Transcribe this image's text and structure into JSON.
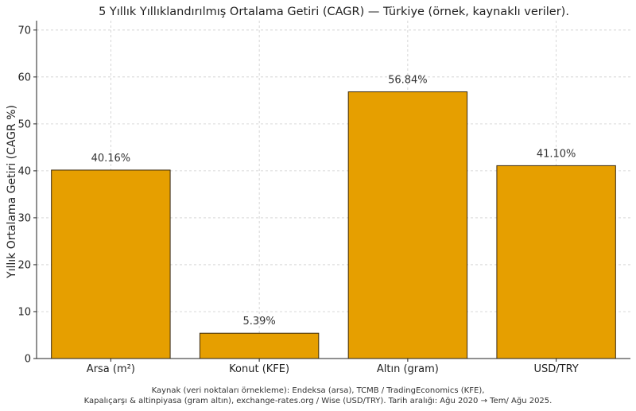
{
  "chart_data": {
    "type": "bar",
    "title": "5 Yıllık Yıllıklandırılmış Ortalama Getiri (CAGR) — Türkiye (örnek, kaynaklı veriler).",
    "ylabel": "Yıllık Ortalama Getiri (CAGR %)",
    "xlabel": "",
    "categories": [
      "Arsa (m²)",
      "Konut (KFE)",
      "Altın (gram)",
      "USD/TRY"
    ],
    "values": [
      40.16,
      5.39,
      56.84,
      41.1
    ],
    "value_labels": [
      "40.16%",
      "5.39%",
      "56.84%",
      "41.10%"
    ],
    "ylim": [
      0,
      72
    ],
    "yticks": [
      0,
      10,
      20,
      30,
      40,
      50,
      60,
      70
    ],
    "grid": true,
    "bar_color": "#E69F00",
    "bar_edge_color": "#3a2a10"
  },
  "source": {
    "line1": "Kaynak (veri noktaları örnekleme): Endeksa (arsa), TCMB / TradingEconomics (KFE),",
    "line2": "Kapalıçarşı & altinpiyasa (gram altın), exchange-rates.org / Wise (USD/TRY). Tarih aralığı: Ağu 2020 → Tem/ Ağu 2025."
  }
}
